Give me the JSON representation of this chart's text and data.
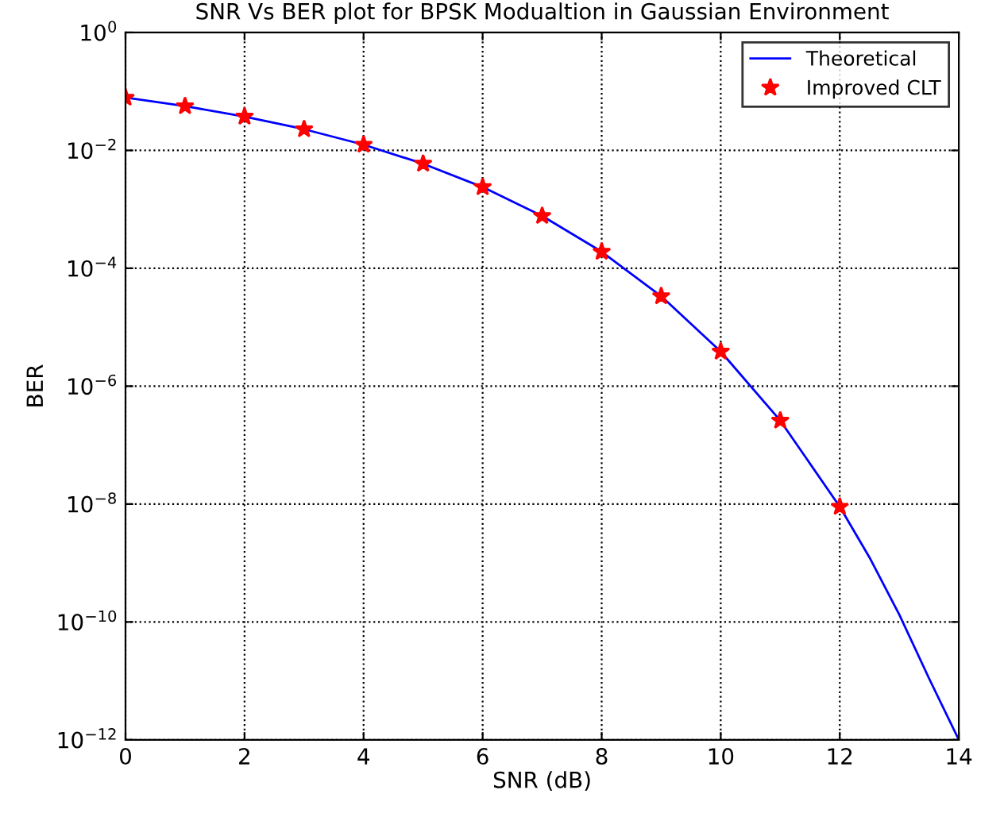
{
  "chart_data": {
    "type": "line",
    "title": "SNR Vs BER plot for BPSK Modualtion in Gaussian Environment",
    "xlabel": "SNR (dB)",
    "ylabel": "BER",
    "log": "y",
    "xlim": [
      0,
      14
    ],
    "ylim": [
      1e-12,
      1
    ],
    "xticks": [
      0,
      2,
      4,
      6,
      8,
      10,
      12,
      14
    ],
    "yticks": [
      {
        "value": 1e-12,
        "label": "10$^{−12}$"
      },
      {
        "value": 1e-10,
        "label": "10$^{−10}$"
      },
      {
        "value": 1e-08,
        "label": "10$^{−8}$"
      },
      {
        "value": 1e-06,
        "label": "10$^{−6}$"
      },
      {
        "value": 0.0001,
        "label": "10$^{−4}$"
      },
      {
        "value": 0.01,
        "label": "10$^{−2}$"
      },
      {
        "value": 1,
        "label": "10$^{0}$"
      }
    ],
    "grid": true,
    "legend": "top right",
    "series": [
      {
        "name": "Theoretical",
        "type": "line",
        "color": "#0000ff",
        "marker": "none",
        "line_style": "solid",
        "x": [
          0,
          1,
          2,
          3,
          4,
          5,
          6,
          7,
          8,
          9,
          10,
          11,
          12,
          12.5,
          13,
          13.5,
          14
        ],
        "values": [
          0.0786,
          0.0563,
          0.0375,
          0.0229,
          0.0125,
          0.00595,
          0.00239,
          0.000773,
          0.000191,
          3.36e-05,
          3.87e-06,
          2.61e-07,
          9e-09,
          1.24e-09,
          1.33e-10,
          1.1e-11,
          1e-12
        ]
      },
      {
        "name": "Improved CLT",
        "type": "scatter",
        "color": "#ff0000",
        "marker": "star",
        "x": [
          0,
          1,
          2,
          3,
          4,
          5,
          6,
          7,
          8,
          9,
          10,
          11,
          12
        ],
        "values": [
          0.0786,
          0.0563,
          0.0375,
          0.0229,
          0.0125,
          0.00595,
          0.00239,
          0.000773,
          0.000191,
          3.36e-05,
          3.87e-06,
          2.61e-07,
          9e-09
        ]
      }
    ]
  }
}
